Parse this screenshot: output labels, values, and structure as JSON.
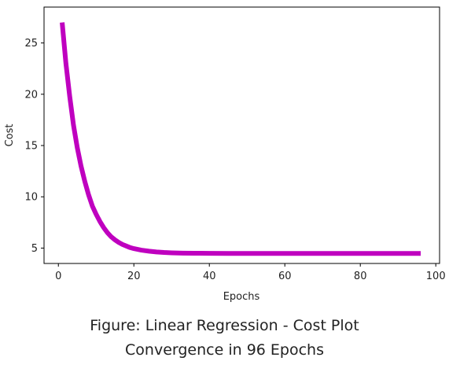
{
  "chart_data": {
    "type": "line",
    "title": "",
    "xlabel": "Epochs",
    "ylabel": "Cost",
    "xlim": [
      -3.8,
      101
    ],
    "ylim": [
      3.5,
      28.5
    ],
    "xticks": [
      0,
      20,
      40,
      60,
      80,
      100
    ],
    "yticks": [
      5,
      10,
      15,
      20,
      25
    ],
    "grid": false,
    "legend": "none",
    "line_color": "#bf00bf",
    "series": [
      {
        "x": [
          1,
          2,
          3,
          4,
          5,
          6,
          7,
          8,
          9,
          10,
          11,
          12,
          13,
          14,
          15,
          16,
          17,
          18,
          19,
          20,
          22,
          24,
          26,
          28,
          30,
          33,
          36,
          40,
          45,
          50,
          55,
          60,
          70,
          80,
          90,
          96
        ],
        "values": [
          27.0,
          23.0,
          19.8,
          17.0,
          14.8,
          13.0,
          11.5,
          10.2,
          9.1,
          8.3,
          7.6,
          7.0,
          6.5,
          6.1,
          5.8,
          5.55,
          5.35,
          5.2,
          5.05,
          4.95,
          4.8,
          4.7,
          4.62,
          4.57,
          4.54,
          4.51,
          4.5,
          4.49,
          4.48,
          4.48,
          4.48,
          4.48,
          4.48,
          4.48,
          4.48,
          4.48
        ]
      }
    ]
  },
  "caption": {
    "line1": "Figure: Linear Regression - Cost Plot",
    "line2": "Convergence in 96 Epochs"
  }
}
